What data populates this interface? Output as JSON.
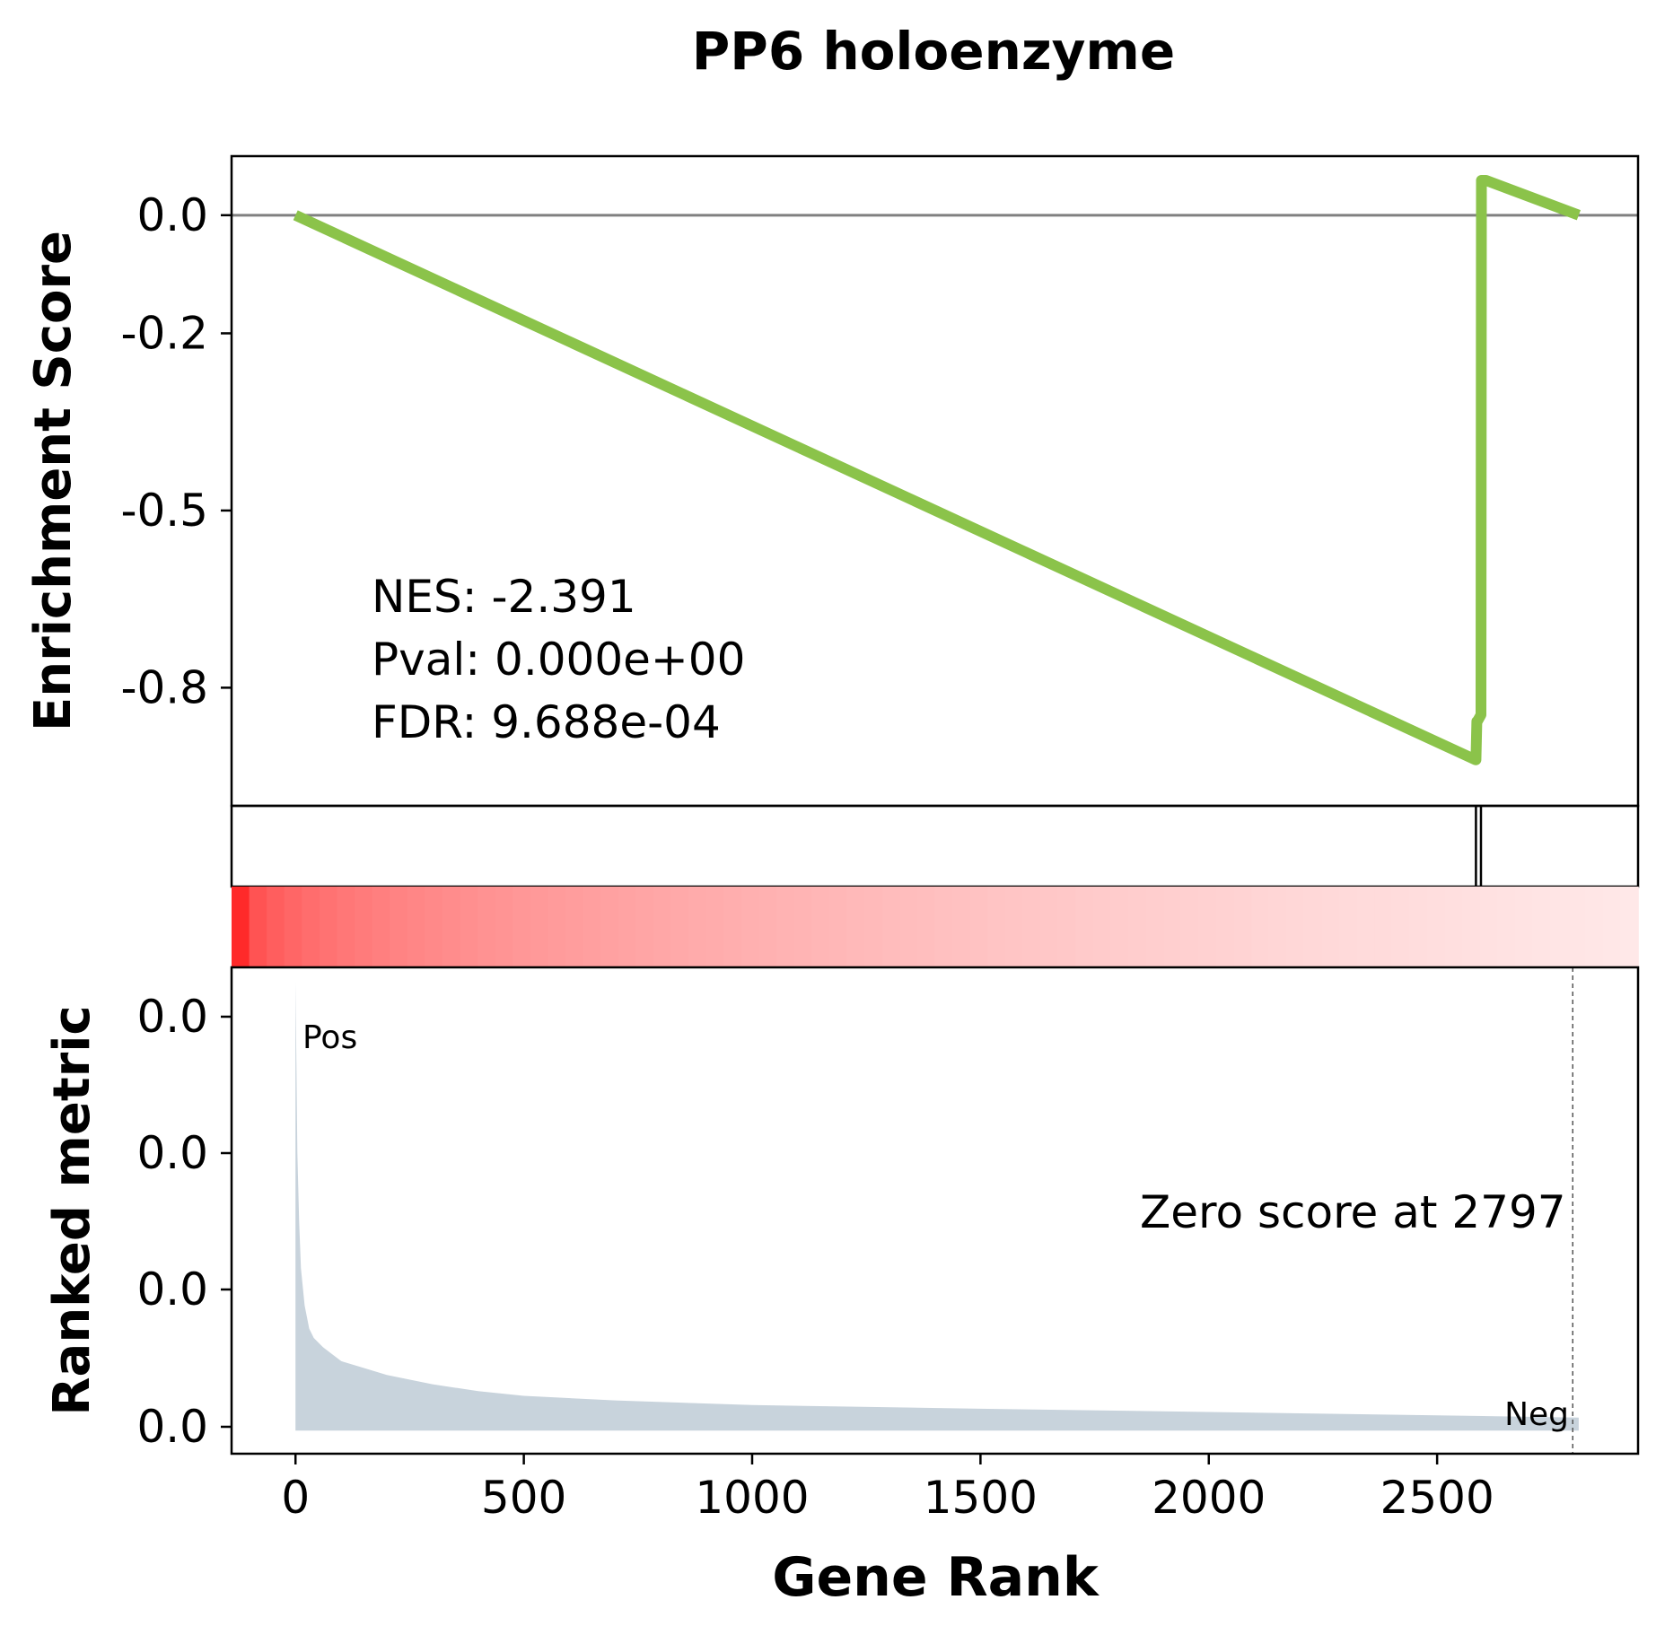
{
  "chart_data": {
    "type": "line",
    "title": "PP6 holoenzyme",
    "xlabel": "Gene Rank",
    "xlim": [
      -140,
      2940
    ],
    "x_ticks": [
      0,
      500,
      1000,
      1500,
      2000,
      2500
    ],
    "x_tick_labels": [
      "0",
      "500",
      "1000",
      "1500",
      "2000",
      "2500"
    ],
    "enrichment": {
      "ylabel": "Enrichment Score",
      "ylim": [
        -1.0,
        0.1
      ],
      "y_ticks": [
        0.0,
        -0.2,
        -0.5,
        -0.8
      ],
      "y_tick_labels": [
        "0.0",
        "-0.2",
        "-0.5",
        "-0.8"
      ],
      "zero_line": 0,
      "line_color": "#8bc34a",
      "x": [
        0,
        2584,
        2585,
        2587,
        2588,
        2596,
        2597,
        2606,
        2607,
        2810
      ],
      "y": [
        0.0,
        -0.922,
        -0.922,
        -0.857,
        -0.857,
        -0.846,
        0.059,
        0.059,
        0.059,
        0.0
      ],
      "stats": [
        "NES: -2.391",
        "Pval: 0.000e+00",
        "FDR: 9.688e-04"
      ]
    },
    "hits": [
      2585,
      2596
    ],
    "colorbar": {
      "colors": [
        "#ff2a2a",
        "#ffe8e8"
      ]
    },
    "ranked_metric": {
      "ylabel": "Ranked metric",
      "y_tick_labels": [
        "0.0",
        "0.0",
        "0.0",
        "0.0"
      ],
      "fill_color": "#c8d3dc",
      "x": [
        0,
        2,
        4,
        8,
        12,
        20,
        30,
        40,
        60,
        80,
        100,
        150,
        200,
        300,
        400,
        500,
        700,
        1000,
        1500,
        2000,
        2500,
        2810
      ],
      "values": [
        0.97,
        0.8,
        0.6,
        0.45,
        0.35,
        0.27,
        0.22,
        0.2,
        0.18,
        0.165,
        0.15,
        0.135,
        0.12,
        0.1,
        0.085,
        0.075,
        0.065,
        0.055,
        0.047,
        0.04,
        0.033,
        0.028
      ],
      "ylim": [
        -0.05,
        1.0
      ],
      "pos_label": "Pos",
      "neg_label": "Neg",
      "pos_color": "#ff0000",
      "neg_color": "#0000ff",
      "zero_cross_text": "Zero score at 2797",
      "zero_cross_x": 2797
    }
  }
}
